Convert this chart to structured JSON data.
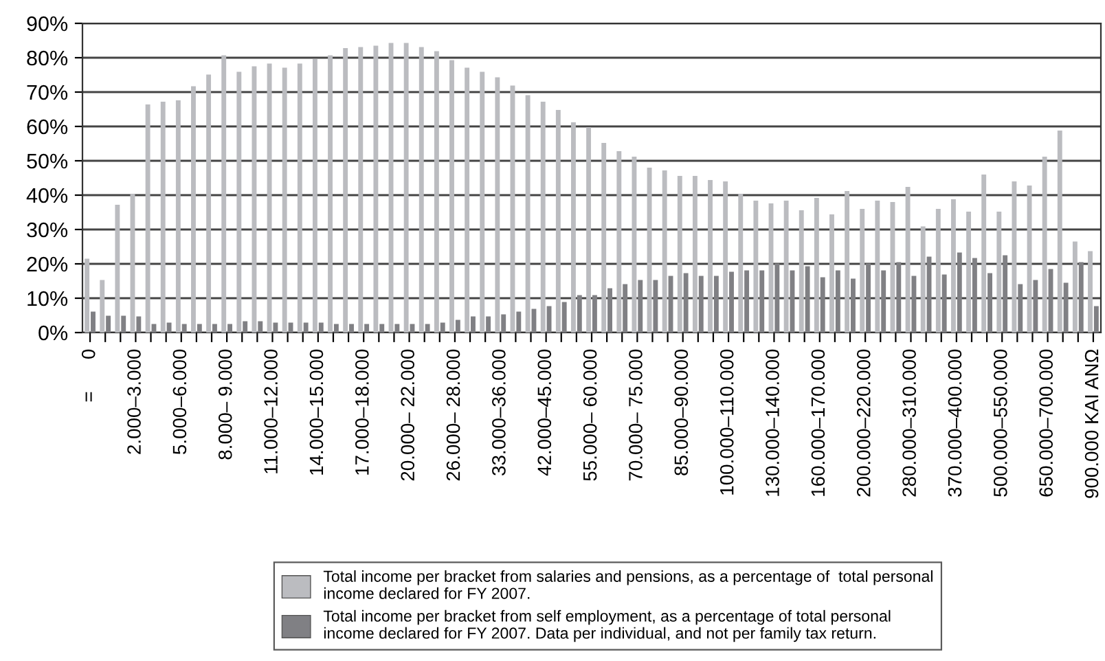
{
  "chart_data": {
    "type": "bar",
    "categories": [
      "=      0",
      null,
      null,
      "2.000–3.000",
      null,
      null,
      "5.000–6.000",
      null,
      null,
      "8.000– 9.000",
      null,
      null,
      "11.000–12.000",
      null,
      null,
      "14.000–15.000",
      null,
      null,
      "17.000–18.000",
      null,
      null,
      "20.000– 22.000",
      null,
      null,
      "26.000– 28.000",
      null,
      null,
      "33.000–36.000",
      null,
      null,
      "42.000–45.000",
      null,
      null,
      "55.000– 60.000",
      null,
      null,
      "70.000– 75.000",
      null,
      null,
      "85.000–90.000",
      null,
      null,
      "100.000–110.000",
      null,
      null,
      "130.000–140.000",
      null,
      null,
      "160.000–170.000",
      null,
      null,
      "200.000–220.000",
      null,
      null,
      "280.000–310.000",
      null,
      null,
      "370.000–400.000",
      null,
      null,
      "500.000–550.000",
      null,
      null,
      "650.000–700.000",
      null,
      null,
      "900.000 KAI ANΩ"
    ],
    "series": [
      {
        "name": "Total income per bracket from salaries and pensions, as a percentage of  total personal\nincome declared for FY 2007.",
        "color": "#bbbcc0",
        "values": [
          21.5,
          15.3,
          37.2,
          40.4,
          66.4,
          67.2,
          67.6,
          71.7,
          75.1,
          80.7,
          75.9,
          77.5,
          78.3,
          77.1,
          78.3,
          79.6,
          80.7,
          82.8,
          83.1,
          83.5,
          84.3,
          84.3,
          83.1,
          81.9,
          79.3,
          77.1,
          75.9,
          74.3,
          71.9,
          69.1,
          67.2,
          64.8,
          61.2,
          59.8,
          55.2,
          52.8,
          51.2,
          48.0,
          47.2,
          45.6,
          45.6,
          44.4,
          44.0,
          40.4,
          38.4,
          37.6,
          38.4,
          35.6,
          39.2,
          34.4,
          41.2,
          36.0,
          38.4,
          38.0,
          42.4,
          30.9,
          36.0,
          38.8,
          35.2,
          46.0,
          35.2,
          44.0,
          42.8,
          51.2,
          58.8,
          26.5,
          23.7
        ]
      },
      {
        "name": "Total income per bracket from self employment, as a percentage of total personal\nincome declared for FY 2007. Data per individual, and not per family tax return.",
        "color": "#808084",
        "values": [
          6.1,
          4.9,
          4.9,
          4.7,
          2.5,
          2.9,
          2.5,
          2.5,
          2.5,
          2.5,
          3.3,
          3.3,
          2.9,
          2.9,
          2.9,
          2.9,
          2.5,
          2.5,
          2.5,
          2.5,
          2.5,
          2.5,
          2.5,
          2.9,
          3.7,
          4.7,
          4.7,
          5.3,
          6.1,
          6.9,
          7.7,
          8.9,
          10.9,
          10.9,
          12.9,
          14.1,
          15.3,
          15.3,
          16.5,
          17.3,
          16.5,
          16.5,
          17.7,
          18.1,
          18.1,
          20.1,
          18.1,
          19.3,
          16.1,
          18.1,
          15.7,
          20.1,
          18.1,
          20.5,
          16.5,
          22.1,
          16.9,
          23.3,
          21.7,
          17.3,
          22.5,
          14.1,
          15.3,
          18.5,
          14.5,
          20.5,
          7.7
        ]
      }
    ],
    "ylim": [
      0,
      90
    ],
    "yticks": [
      {
        "value": 0,
        "label": "0%"
      },
      {
        "value": 10,
        "label": "10%"
      },
      {
        "value": 20,
        "label": "20%"
      },
      {
        "value": 30,
        "label": "30%"
      },
      {
        "value": 40,
        "label": "40%"
      },
      {
        "value": 50,
        "label": "50%"
      },
      {
        "value": 60,
        "label": "60%"
      },
      {
        "value": 70,
        "label": "70%"
      },
      {
        "value": 80,
        "label": "80%"
      },
      {
        "value": 90,
        "label": "90%"
      }
    ],
    "grid": "y",
    "legend": "bottom"
  }
}
